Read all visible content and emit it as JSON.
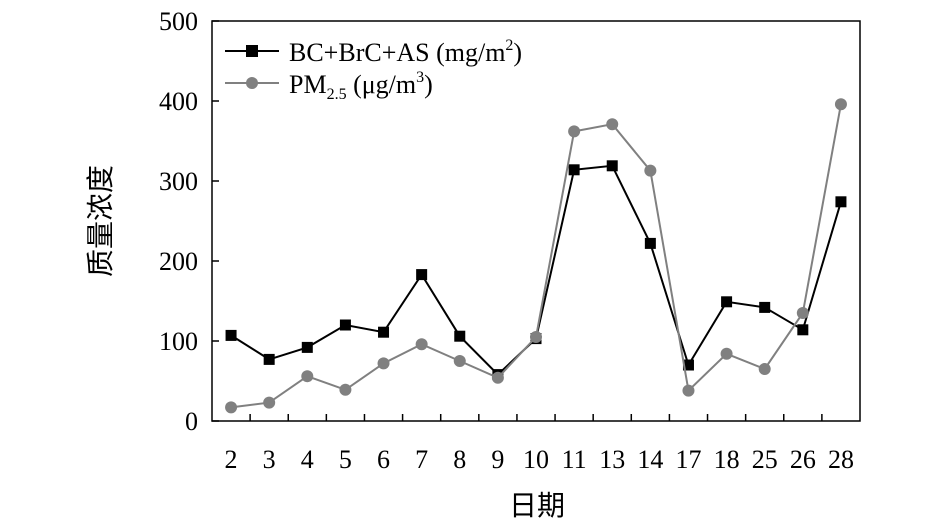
{
  "chart_data": {
    "type": "line",
    "xlabel": "日期",
    "ylabel": "质量浓度",
    "ylim": [
      0,
      500
    ],
    "yticks": [
      0,
      100,
      200,
      300,
      400,
      500
    ],
    "categories": [
      "2",
      "3",
      "4",
      "5",
      "6",
      "7",
      "8",
      "9",
      "10",
      "11",
      "13",
      "14",
      "17",
      "18",
      "25",
      "26",
      "28"
    ],
    "grid": false,
    "legend_placement": "top-left",
    "series": [
      {
        "name": "BC+BrC+AS (mg/m2)",
        "legend": {
          "main": "BC+BrC+AS (mg/m",
          "sup": "2",
          "tail": ")"
        },
        "color": "#000000",
        "marker": "square",
        "values": [
          107,
          77,
          92,
          120,
          111,
          183,
          106,
          58,
          103,
          314,
          319,
          222,
          70,
          149,
          142,
          114,
          274
        ]
      },
      {
        "name": "PM2.5 (μg/m3)",
        "legend": {
          "main": "PM",
          "sub": "2.5",
          "mid": " (μg/m",
          "sup": "3",
          "tail": ")"
        },
        "color": "#808080",
        "marker": "circle",
        "values": [
          17,
          23,
          56,
          39,
          72,
          96,
          75,
          54,
          105,
          362,
          371,
          313,
          38,
          84,
          65,
          135,
          396
        ]
      }
    ]
  }
}
